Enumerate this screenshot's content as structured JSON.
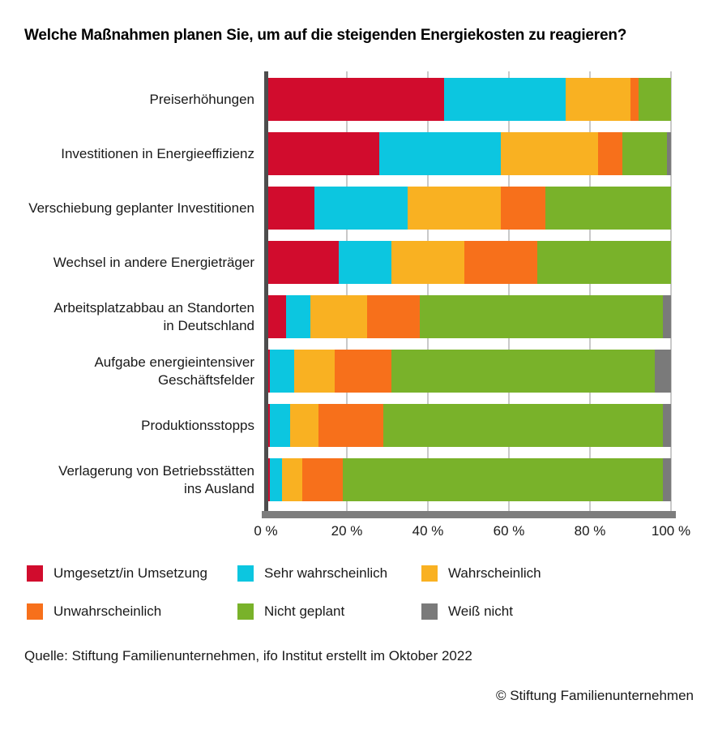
{
  "title": "Welche Maßnahmen planen Sie, um auf die steigenden Energiekosten zu reagieren?",
  "chart_data": {
    "type": "bar",
    "orientation": "horizontal",
    "stacked": true,
    "unit": "%",
    "xlim": [
      0,
      100
    ],
    "grid": "vertical",
    "legend_position": "bottom",
    "categories": [
      "Preiserhöhungen",
      "Investitionen in Energieeffizienz",
      "Verschiebung geplanter Investitionen",
      "Wechsel in andere Energieträger",
      "Arbeitsplatzabbau an Standorten in Deutschland",
      "Aufgabe energieintensiver Geschäftsfelder",
      "Produktionsstopps",
      "Verlagerung von Betriebsstätten ins Ausland"
    ],
    "category_lines": [
      [
        "Preiserhöhungen"
      ],
      [
        "Investitionen in Energieeffizienz"
      ],
      [
        "Verschiebung geplanter Investitionen"
      ],
      [
        "Wechsel in andere Energieträger"
      ],
      [
        "Arbeitsplatzabbau an Standorten",
        "in Deutschland"
      ],
      [
        "Aufgabe energieintensiver",
        "Geschäftsfelder"
      ],
      [
        "Produktionsstopps"
      ],
      [
        "Verlagerung von Betriebsstätten",
        "ins Ausland"
      ]
    ],
    "series": [
      {
        "name": "Umgesetzt/in Umsetzung",
        "color": "#d10c2d",
        "values": [
          44,
          28,
          12,
          18,
          5,
          1,
          1,
          1
        ]
      },
      {
        "name": "Sehr wahrscheinlich",
        "color": "#0cc6e0",
        "values": [
          30,
          30,
          23,
          13,
          6,
          6,
          5,
          3
        ]
      },
      {
        "name": "Wahrscheinlich",
        "color": "#f9b122",
        "values": [
          16,
          24,
          23,
          18,
          14,
          10,
          7,
          5
        ]
      },
      {
        "name": "Unwahrscheinlich",
        "color": "#f7701b",
        "values": [
          2,
          6,
          11,
          18,
          13,
          14,
          16,
          10
        ]
      },
      {
        "name": "Nicht geplant",
        "color": "#79b22a",
        "values": [
          8,
          11,
          31,
          33,
          60,
          65,
          69,
          79
        ]
      },
      {
        "name": "Weiß nicht",
        "color": "#7a7a7a",
        "values": [
          0,
          1,
          0,
          0,
          2,
          4,
          2,
          2
        ]
      }
    ],
    "x_ticks": [
      "0 %",
      "20 %",
      "40 %",
      "60 %",
      "80 %",
      "100 %"
    ],
    "x_tick_values": [
      0,
      20,
      40,
      60,
      80,
      100
    ]
  },
  "footer": {
    "source": "Quelle: Stiftung Familienunternehmen, ifo Institut erstellt im Oktober 2022",
    "copyright": "© Stiftung Familienunternehmen"
  },
  "style_colors": {
    "gridline": "#c9c9c9",
    "axis_line": "#4d4d4d",
    "axis_bar": "#7d7d7d",
    "text": "#191919"
  }
}
